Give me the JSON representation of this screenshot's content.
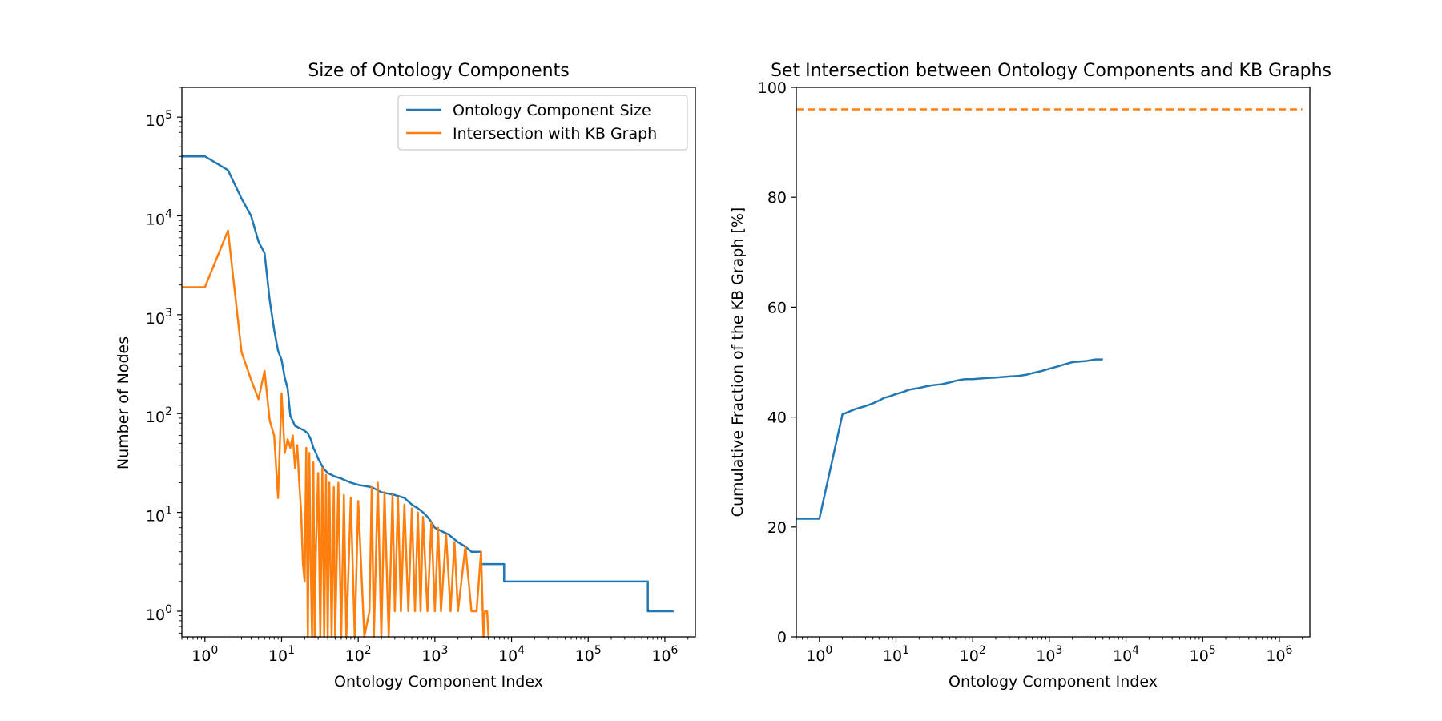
{
  "chart_data": [
    {
      "type": "line",
      "title": "Size of Ontology Components",
      "xlabel": "Ontology Component Index",
      "ylabel": "Number of Nodes",
      "xscale": "log",
      "yscale": "log",
      "xlim": [
        0.5,
        2500000
      ],
      "ylim": [
        0.55,
        200000
      ],
      "grid": false,
      "legend_position": "top-right",
      "x_ticks": [
        {
          "base": "10",
          "exp": "0",
          "value": 1
        },
        {
          "base": "10",
          "exp": "1",
          "value": 10
        },
        {
          "base": "10",
          "exp": "2",
          "value": 100
        },
        {
          "base": "10",
          "exp": "3",
          "value": 1000
        },
        {
          "base": "10",
          "exp": "4",
          "value": 10000
        },
        {
          "base": "10",
          "exp": "5",
          "value": 100000
        },
        {
          "base": "10",
          "exp": "6",
          "value": 1000000
        }
      ],
      "y_ticks": [
        {
          "base": "10",
          "exp": "0",
          "value": 1
        },
        {
          "base": "10",
          "exp": "1",
          "value": 10
        },
        {
          "base": "10",
          "exp": "2",
          "value": 100
        },
        {
          "base": "10",
          "exp": "3",
          "value": 1000
        },
        {
          "base": "10",
          "exp": "4",
          "value": 10000
        },
        {
          "base": "10",
          "exp": "5",
          "value": 100000
        }
      ],
      "series": [
        {
          "name": "Ontology Component Size",
          "color": "#1f77b4",
          "style": "solid",
          "x": [
            0.5,
            1,
            2,
            3,
            4,
            5,
            6,
            7,
            8,
            9,
            10,
            11,
            12,
            13,
            15,
            18,
            20,
            22,
            24,
            26,
            28,
            30,
            35,
            40,
            50,
            60,
            80,
            100,
            150,
            200,
            300,
            400,
            500,
            600,
            700,
            800,
            900,
            1000,
            1200,
            1500,
            2000,
            2500,
            3000,
            4000,
            4001,
            8000,
            8001,
            600000,
            600001,
            1300000
          ],
          "y": [
            40000,
            40000,
            29000,
            15000,
            10000,
            5500,
            4200,
            1400,
            700,
            430,
            350,
            230,
            180,
            95,
            75,
            70,
            67,
            63,
            55,
            45,
            40,
            35,
            28,
            25,
            23,
            22,
            20,
            19,
            18,
            16,
            15,
            14,
            12,
            11,
            10,
            9,
            8,
            7,
            6.5,
            6,
            5,
            4.5,
            4,
            4,
            3,
            3,
            2,
            2,
            1,
            1
          ]
        },
        {
          "name": "Intersection with KB Graph",
          "color": "#ff7f0e",
          "style": "solid",
          "x": [
            0.5,
            1,
            2,
            3,
            4,
            5,
            6,
            7,
            8,
            9,
            10,
            11,
            12,
            13,
            14,
            15,
            16,
            17,
            18,
            19,
            20,
            21,
            22,
            23,
            24,
            25,
            26,
            27,
            28,
            30,
            32,
            34,
            36,
            38,
            40,
            42,
            45,
            48,
            50,
            55,
            60,
            65,
            70,
            80,
            90,
            100,
            120,
            140,
            150,
            160,
            180,
            200,
            220,
            250,
            280,
            300,
            330,
            360,
            400,
            450,
            500,
            550,
            600,
            650,
            700,
            800,
            900,
            1000,
            1100,
            1200,
            1400,
            1600,
            1800,
            2000,
            2500,
            3000,
            3500,
            4000,
            4300,
            4500,
            4800,
            5000
          ],
          "y": [
            1900,
            1900,
            7100,
            420,
            220,
            140,
            270,
            85,
            60,
            14,
            160,
            40,
            55,
            45,
            60,
            28,
            48,
            20,
            10,
            3,
            2,
            45,
            0.5,
            40,
            3,
            0.5,
            32,
            0.5,
            4,
            25,
            0.5,
            28,
            0.5,
            24,
            0.5,
            20,
            0.5,
            18,
            0.5,
            20,
            0.5,
            15,
            0.5,
            14,
            0.5,
            13,
            0.5,
            1,
            18,
            0.5,
            20,
            0.5,
            16,
            0.5,
            15,
            1,
            14,
            1,
            12,
            1,
            11,
            1,
            10,
            1,
            9,
            1,
            8,
            1,
            7,
            1,
            6,
            1,
            5,
            1,
            4.5,
            1,
            1,
            4,
            0.5,
            1,
            1,
            0.5
          ]
        }
      ]
    },
    {
      "type": "line",
      "title": "Set Intersection between Ontology Components and KB Graphs",
      "xlabel": "Ontology Component Index",
      "ylabel": "Cumulative Fraction of the KB Graph [%]",
      "xscale": "log",
      "yscale": "linear",
      "xlim": [
        0.5,
        2500000
      ],
      "ylim": [
        0,
        100
      ],
      "grid": false,
      "x_ticks": [
        {
          "base": "10",
          "exp": "0",
          "value": 1
        },
        {
          "base": "10",
          "exp": "1",
          "value": 10
        },
        {
          "base": "10",
          "exp": "2",
          "value": 100
        },
        {
          "base": "10",
          "exp": "3",
          "value": 1000
        },
        {
          "base": "10",
          "exp": "4",
          "value": 10000
        },
        {
          "base": "10",
          "exp": "5",
          "value": 100000
        },
        {
          "base": "10",
          "exp": "6",
          "value": 1000000
        }
      ],
      "y_ticks": [
        "0",
        "20",
        "40",
        "60",
        "80",
        "100"
      ],
      "series": [
        {
          "color": "#1f77b4",
          "style": "solid",
          "x": [
            0.5,
            1,
            2,
            3,
            4,
            5,
            6,
            7,
            8,
            10,
            12,
            15,
            20,
            25,
            30,
            40,
            50,
            60,
            70,
            80,
            100,
            150,
            200,
            300,
            400,
            500,
            600,
            800,
            1000,
            1200,
            1500,
            2000,
            3000,
            4000,
            5000
          ],
          "y": [
            21.5,
            21.5,
            40.5,
            41.5,
            42,
            42.5,
            43,
            43.5,
            43.7,
            44.2,
            44.5,
            45,
            45.3,
            45.6,
            45.8,
            46,
            46.3,
            46.6,
            46.8,
            46.9,
            46.9,
            47.1,
            47.2,
            47.4,
            47.5,
            47.7,
            48,
            48.4,
            48.8,
            49.1,
            49.5,
            50,
            50.2,
            50.5,
            50.5
          ]
        },
        {
          "color": "#ff7f0e",
          "style": "dashed",
          "x": [
            0.5,
            2000000
          ],
          "y": [
            96,
            96
          ]
        }
      ]
    }
  ]
}
